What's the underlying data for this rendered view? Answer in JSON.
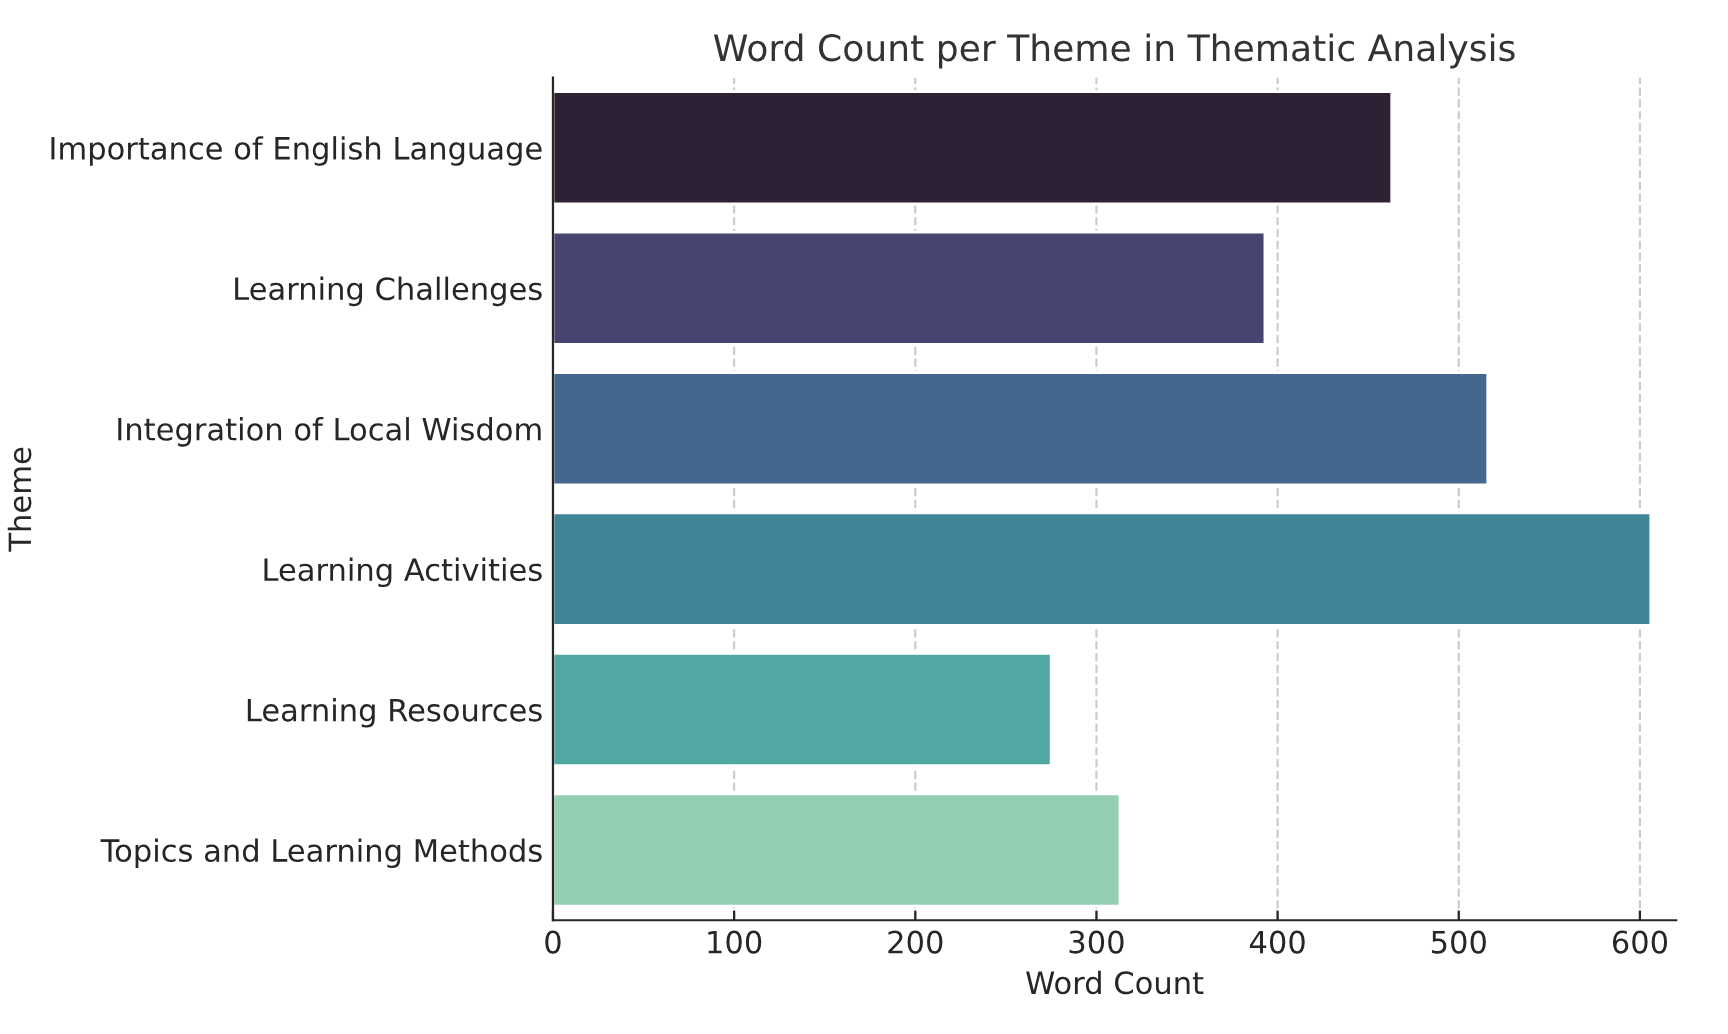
{
  "chart_data": {
    "type": "bar",
    "orientation": "horizontal",
    "title": "Word Count per Theme in Thematic Analysis",
    "xlabel": "Word Count",
    "ylabel": "Theme",
    "categories": [
      "Importance of English Language",
      "Learning Challenges",
      "Integration of Local Wisdom",
      "Learning Activities",
      "Learning Resources",
      "Topics and Learning Methods"
    ],
    "values": [
      463,
      393,
      516,
      606,
      275,
      313
    ],
    "colors": [
      "#2e2136",
      "#474471",
      "#43678f",
      "#418598",
      "#51a8a2",
      "#95cfb2"
    ],
    "xlim": [
      0,
      620
    ],
    "xticks": [
      0,
      100,
      200,
      300,
      400,
      500,
      600
    ],
    "grid": "x"
  }
}
